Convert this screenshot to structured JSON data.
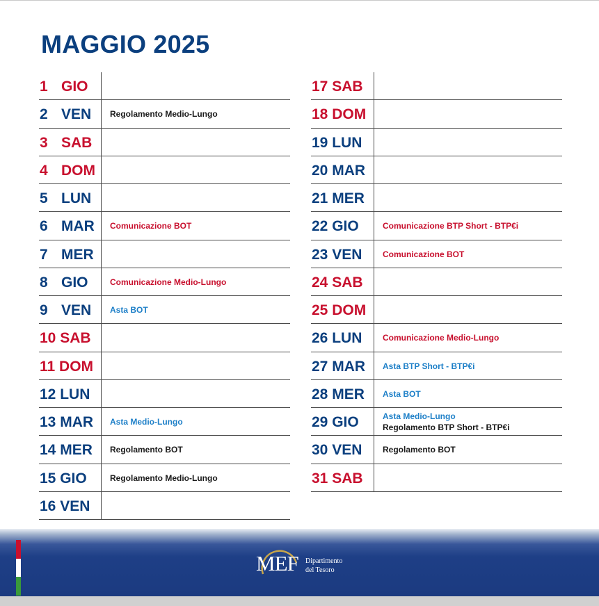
{
  "header": {
    "month": "MAGGIO",
    "year": "2025"
  },
  "colors": {
    "weekday": "#0b3f7e",
    "weekend": "#c8102e",
    "comunicazione": "#c8102e",
    "asta": "#1f80c8",
    "regolamento": "#1a1a1a"
  },
  "left_column": [
    {
      "num": "1",
      "dow": "GIO",
      "weekend": true,
      "events": []
    },
    {
      "num": "2",
      "dow": "VEN",
      "weekend": false,
      "events": [
        {
          "type": "reg",
          "text": "Regolamento Medio-Lungo"
        }
      ]
    },
    {
      "num": "3",
      "dow": "SAB",
      "weekend": true,
      "events": []
    },
    {
      "num": "4",
      "dow": "DOM",
      "weekend": true,
      "events": []
    },
    {
      "num": "5",
      "dow": "LUN",
      "weekend": false,
      "events": []
    },
    {
      "num": "6",
      "dow": "MAR",
      "weekend": false,
      "events": [
        {
          "type": "comm",
          "text": "Comunicazione BOT"
        }
      ]
    },
    {
      "num": "7",
      "dow": "MER",
      "weekend": false,
      "events": []
    },
    {
      "num": "8",
      "dow": "GIO",
      "weekend": false,
      "events": [
        {
          "type": "comm",
          "text": "Comunicazione Medio-Lungo"
        }
      ]
    },
    {
      "num": "9",
      "dow": "VEN",
      "weekend": false,
      "events": [
        {
          "type": "asta",
          "text": "Asta BOT"
        }
      ]
    },
    {
      "num": "10",
      "dow": "SAB",
      "weekend": true,
      "events": []
    },
    {
      "num": "11",
      "dow": "DOM",
      "weekend": true,
      "events": []
    },
    {
      "num": "12",
      "dow": "LUN",
      "weekend": false,
      "events": []
    },
    {
      "num": "13",
      "dow": "MAR",
      "weekend": false,
      "events": [
        {
          "type": "asta",
          "text": "Asta Medio-Lungo"
        }
      ]
    },
    {
      "num": "14",
      "dow": "MER",
      "weekend": false,
      "events": [
        {
          "type": "reg",
          "text": "Regolamento BOT"
        }
      ]
    },
    {
      "num": "15",
      "dow": "GIO",
      "weekend": false,
      "events": [
        {
          "type": "reg",
          "text": "Regolamento Medio-Lungo"
        }
      ]
    },
    {
      "num": "16",
      "dow": "VEN",
      "weekend": false,
      "events": []
    }
  ],
  "right_column": [
    {
      "num": "17",
      "dow": "SAB",
      "weekend": true,
      "events": []
    },
    {
      "num": "18",
      "dow": "DOM",
      "weekend": true,
      "events": []
    },
    {
      "num": "19",
      "dow": "LUN",
      "weekend": false,
      "events": []
    },
    {
      "num": "20",
      "dow": "MAR",
      "weekend": false,
      "events": []
    },
    {
      "num": "21",
      "dow": "MER",
      "weekend": false,
      "events": []
    },
    {
      "num": "22",
      "dow": "GIO",
      "weekend": false,
      "events": [
        {
          "type": "comm",
          "text": "Comunicazione BTP Short - BTP€i"
        }
      ]
    },
    {
      "num": "23",
      "dow": "VEN",
      "weekend": false,
      "events": [
        {
          "type": "comm",
          "text": "Comunicazione BOT"
        }
      ]
    },
    {
      "num": "24",
      "dow": "SAB",
      "weekend": true,
      "events": []
    },
    {
      "num": "25",
      "dow": "DOM",
      "weekend": true,
      "events": []
    },
    {
      "num": "26",
      "dow": "LUN",
      "weekend": false,
      "events": [
        {
          "type": "comm",
          "text": "Comunicazione Medio-Lungo"
        }
      ]
    },
    {
      "num": "27",
      "dow": "MAR",
      "weekend": false,
      "events": [
        {
          "type": "asta",
          "text": "Asta BTP Short - BTP€i"
        }
      ]
    },
    {
      "num": "28",
      "dow": "MER",
      "weekend": false,
      "events": [
        {
          "type": "asta",
          "text": "Asta BOT"
        }
      ]
    },
    {
      "num": "29",
      "dow": "GIO",
      "weekend": false,
      "events": [
        {
          "type": "asta",
          "text": "Asta Medio-Lungo"
        },
        {
          "type": "reg",
          "text": "Regolamento BTP Short - BTP€i"
        }
      ]
    },
    {
      "num": "30",
      "dow": "VEN",
      "weekend": false,
      "events": [
        {
          "type": "reg",
          "text": "Regolamento BOT"
        }
      ]
    },
    {
      "num": "31",
      "dow": "SAB",
      "weekend": true,
      "events": []
    }
  ],
  "footer": {
    "logo_text": "MEF",
    "dept_line1": "Dipartimento",
    "dept_line2": "del Tesoro",
    "flag_colors": [
      "#c8102e",
      "#ffffff",
      "#3a9a3a"
    ]
  }
}
